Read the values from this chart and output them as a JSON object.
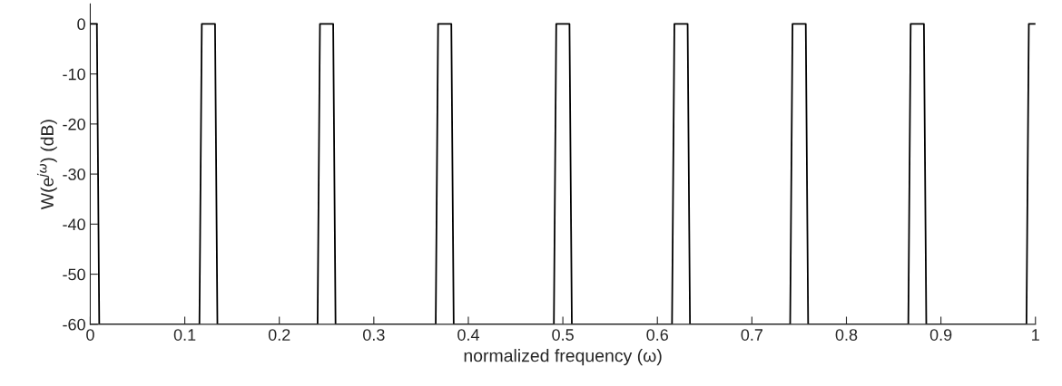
{
  "chart_data": {
    "type": "line",
    "xlabel": "normalized frequency (ω)",
    "ylabel": "W(e$^{jω}$) (dB)",
    "series": [
      {
        "color": "#000000",
        "x": [
          0,
          0.007,
          0.0095,
          0.1155,
          0.118,
          0.132,
          0.1345,
          0.2405,
          0.243,
          0.257,
          0.2595,
          0.3655,
          0.368,
          0.382,
          0.3845,
          0.4905,
          0.493,
          0.507,
          0.5095,
          0.6155,
          0.618,
          0.632,
          0.6345,
          0.7405,
          0.743,
          0.757,
          0.7595,
          0.8655,
          0.868,
          0.882,
          0.8845,
          0.9905,
          0.993,
          1.0
        ],
        "values": [
          0,
          0,
          -60,
          -60,
          0,
          0,
          -60,
          -60,
          0,
          0,
          -60,
          -60,
          0,
          0,
          -60,
          -60,
          0,
          0,
          -60,
          -60,
          0,
          0,
          -60,
          -60,
          0,
          0,
          -60,
          -60,
          0,
          0,
          -60,
          -60,
          0,
          0
        ]
      }
    ],
    "xlim": [
      0,
      1
    ],
    "ylim": [
      -60,
      4
    ],
    "xticks": [
      0,
      0.1,
      0.2,
      0.3,
      0.4,
      0.5,
      0.6,
      0.7,
      0.8,
      0.9,
      1
    ],
    "yticks": [
      0,
      -10,
      -20,
      -30,
      -40,
      -50,
      -60
    ],
    "grid": false,
    "legend": false,
    "marker": "none",
    "line_style": "solid"
  }
}
